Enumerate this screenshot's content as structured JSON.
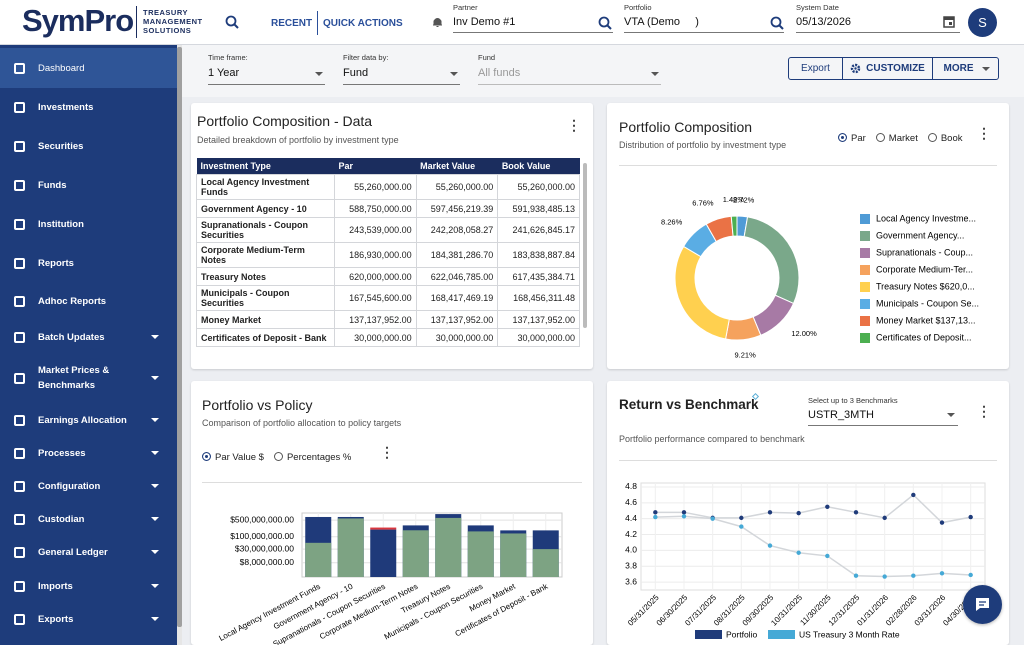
{
  "header": {
    "logo": "SymPro",
    "tagline": "TREASURY MANAGEMENT SOLUTIONS",
    "recent": "RECENT",
    "quick_actions": "QUICK ACTIONS",
    "partner_label": "Partner",
    "partner": "Inv Demo #1",
    "portfolio_label": "Portfolio",
    "portfolio": "VTA (Demo     )",
    "date_label": "System Date",
    "date": "05/13/2026",
    "avatar": "S"
  },
  "sidebar": {
    "items": [
      "Dashboard",
      "Investments",
      "Securities",
      "Funds",
      "Institution",
      "Reports",
      "Adhoc Reports",
      "Batch Updates",
      "Market Prices & Benchmarks",
      "Earnings Allocation",
      "Processes",
      "Configuration",
      "Custodian",
      "General Ledger",
      "Imports",
      "Exports"
    ]
  },
  "filters": {
    "time_frame_label": "Time frame:",
    "time_frame": "1 Year",
    "filter_label": "Filter data by:",
    "filter": "Fund",
    "fund_label": "Fund",
    "fund": "All funds",
    "export": "Export",
    "customize": "CUSTOMIZE",
    "more": "MORE"
  },
  "table": {
    "title": "Portfolio Composition - Data",
    "subtitle": "Detailed breakdown of portfolio by investment type",
    "columns": [
      "Investment Type",
      "Par",
      "Market Value",
      "Book Value"
    ],
    "rows": [
      [
        "Local Agency Investment Funds",
        "55,260,000.00",
        "55,260,000.00",
        "55,260,000.00"
      ],
      [
        "Government Agency - 10",
        "588,750,000.00",
        "597,456,219.39",
        "591,938,485.13"
      ],
      [
        "Supranationals - Coupon Securities",
        "243,539,000.00",
        "242,208,058.27",
        "241,626,845.17"
      ],
      [
        "Corporate Medium-Term Notes",
        "186,930,000.00",
        "184,381,286.70",
        "183,838,887.84"
      ],
      [
        "Treasury Notes",
        "620,000,000.00",
        "622,046,785.00",
        "617,435,384.71"
      ],
      [
        "Municipals - Coupon Securities",
        "167,545,600.00",
        "168,417,469.19",
        "168,456,311.48"
      ],
      [
        "Money Market",
        "137,137,952.00",
        "137,137,952.00",
        "137,137,952.00"
      ],
      [
        "Certificates of Deposit - Bank",
        "30,000,000.00",
        "30,000,000.00",
        "30,000,000.00"
      ]
    ]
  },
  "chart_data": [
    {
      "type": "pie",
      "title": "Portfolio Composition",
      "subtitle": "Distribution of portfolio by investment type",
      "options": [
        "Par",
        "Market",
        "Book"
      ],
      "categories": [
        "Local Agency Investme...",
        "Government Agency...",
        "Supranationals - Coup...",
        "Corporate Medium-Ter...",
        "Treasury Notes $620,0...",
        "Municipals - Coupon Se...",
        "Money Market $137,13...",
        "Certificates of Deposit..."
      ],
      "values": [
        2.72,
        29.01,
        12.0,
        9.21,
        30.55,
        8.26,
        6.76,
        1.48
      ],
      "value_labels": [
        "2.72%",
        null,
        "12.00%",
        "9.21%",
        null,
        "8.26%",
        "6.76%",
        "1.48%"
      ],
      "colors": [
        "#4f9bd6",
        "#7aa88a",
        "#a77aa5",
        "#f5a25d",
        "#ffd04f",
        "#5aade4",
        "#ea7245",
        "#4caf50"
      ]
    },
    {
      "type": "bar",
      "title": "Portfolio vs Policy",
      "subtitle": "Comparison of portfolio allocation to policy targets",
      "options": [
        "Par Value $",
        "Percentages %"
      ],
      "log_scale": true,
      "grid": true,
      "categories": [
        "Local Agency Investment Funds",
        "Government Agency - 10",
        "Supranationals - Coupon Securities",
        "Corporate Medium-Term Notes",
        "Treasury Notes",
        "Municipals - Coupon Securities",
        "Money Market",
        "Certificates of Deposit - Bank"
      ],
      "series": [
        {
          "color": "#1f3a7a",
          "values": [
            680000000,
            680000000,
            200000000,
            300000000,
            900000000,
            300000000,
            185000000,
            185000000
          ]
        },
        {
          "color": "#7da383",
          "values": [
            55260000,
            588750000,
            null,
            186930000,
            620000000,
            167545600,
            137137952,
            30000000
          ]
        },
        {
          "color": "#d9363e",
          "values": [
            null,
            null,
            243539000,
            null,
            null,
            null,
            null,
            null
          ]
        }
      ],
      "ylim": [
        2000000,
        1000000000
      ],
      "yticks": [
        {
          "value": 500000000,
          "label": "$500,000,000.00"
        },
        {
          "value": 100000000,
          "label": "$100,000,000.00"
        },
        {
          "value": 30000000,
          "label": "$30,000,000.00"
        },
        {
          "value": 8000000,
          "label": "$8,000,000.00"
        }
      ]
    },
    {
      "type": "line",
      "title": "Return vs Benchmark",
      "subtitle": "Portfolio performance compared to benchmark",
      "select_label": "Select up to 3 Benchmarks",
      "benchmark": "USTR_3MTH",
      "grid": true,
      "categories": [
        "05/31/2025",
        "06/30/2025",
        "07/31/2025",
        "08/31/2025",
        "09/30/2025",
        "10/31/2025",
        "11/30/2025",
        "12/31/2025",
        "01/31/2026",
        "02/28/2026",
        "03/31/2026",
        "04/30/2026"
      ],
      "series": [
        {
          "name": "Portfolio",
          "color": "#1f3b7a",
          "values": [
            4.48,
            4.48,
            4.41,
            4.41,
            4.48,
            4.47,
            4.55,
            4.48,
            4.41,
            4.7,
            4.35,
            4.42
          ]
        },
        {
          "name": "US Treasury 3 Month Rate",
          "color": "#45a9d6",
          "values": [
            4.42,
            4.43,
            4.4,
            4.3,
            4.06,
            3.97,
            3.93,
            3.68,
            3.67,
            3.68,
            3.71,
            3.69
          ]
        }
      ],
      "ylim": [
        3.5,
        4.85
      ],
      "yticks": [
        {
          "value": 4.8,
          "label": "4.8"
        },
        {
          "value": 4.6,
          "label": "4.6"
        },
        {
          "value": 4.4,
          "label": "4.4"
        },
        {
          "value": 4.2,
          "label": "4.2"
        },
        {
          "value": 4,
          "label": "4.0"
        },
        {
          "value": 3.8,
          "label": "3.8"
        },
        {
          "value": 3.6,
          "label": "3.6"
        }
      ]
    }
  ]
}
